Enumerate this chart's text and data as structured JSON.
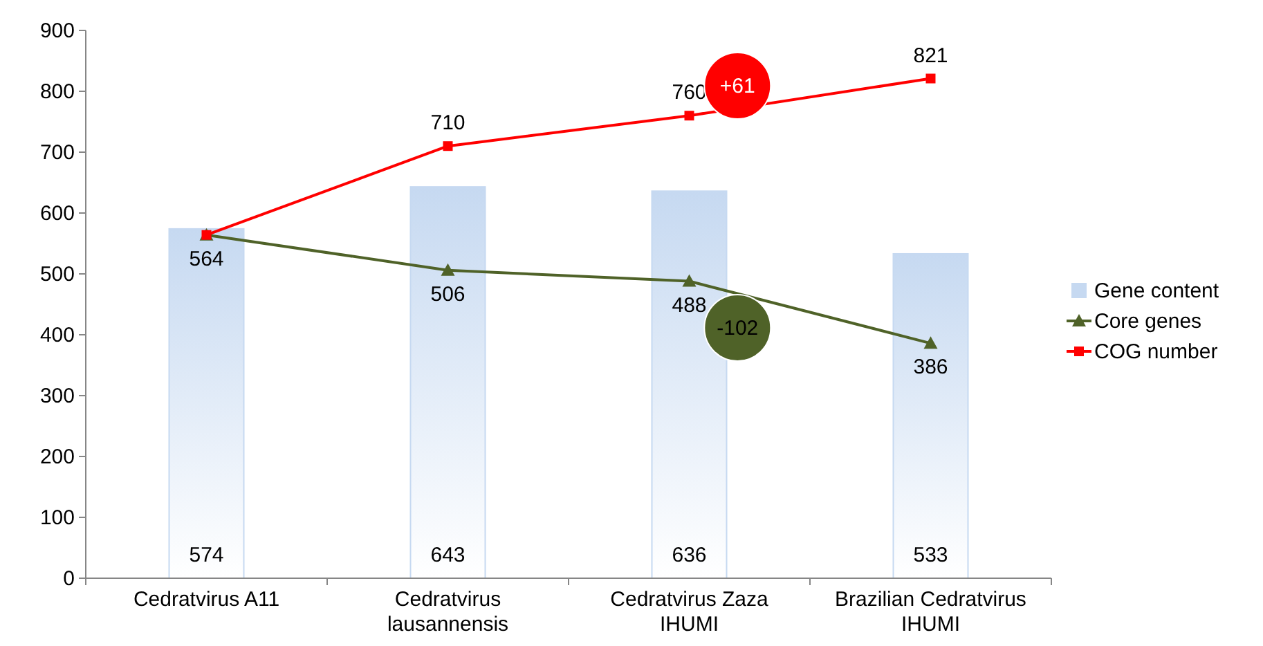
{
  "chart_data": {
    "type": "bar",
    "categories": [
      "Cedratvirus A11",
      "Cedratvirus lausannensis",
      "Cedratvirus Zaza IHUMI",
      "Brazilian Cedratvirus IHUMI"
    ],
    "series": [
      {
        "name": "Gene content",
        "color": "#c6d9f1",
        "values": [
          574,
          643,
          636,
          533
        ],
        "value_labels": [
          "574",
          "643",
          "636",
          "533"
        ]
      },
      {
        "name": "Core genes",
        "type": "line",
        "color": "#4f6228",
        "marker": "triangle",
        "values": [
          564,
          506,
          488,
          386
        ],
        "value_labels": [
          "564",
          "506",
          "488",
          "386"
        ]
      },
      {
        "name": "COG number",
        "type": "line",
        "color": "#ff0000",
        "marker": "square",
        "values": [
          564,
          710,
          760,
          821
        ],
        "value_labels": [
          null,
          "710",
          "760",
          "821"
        ]
      }
    ],
    "ylim": [
      0,
      900
    ],
    "yticks": [
      0,
      100,
      200,
      300,
      400,
      500,
      600,
      700,
      800,
      900
    ],
    "legend": "right",
    "annotations": [
      "+61",
      "-102"
    ]
  }
}
